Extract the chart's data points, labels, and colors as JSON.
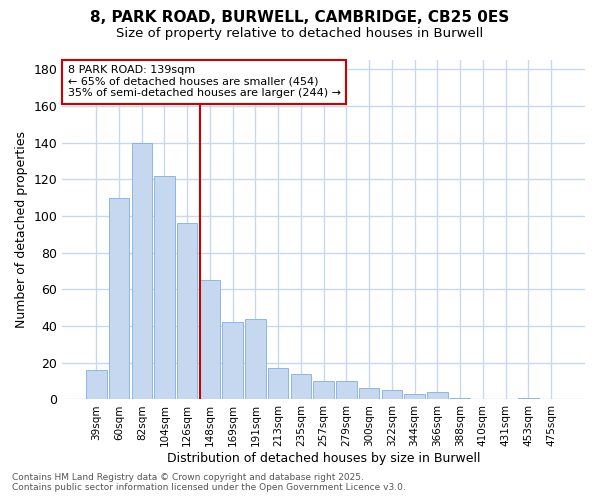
{
  "title1": "8, PARK ROAD, BURWELL, CAMBRIDGE, CB25 0ES",
  "title2": "Size of property relative to detached houses in Burwell",
  "xlabel": "Distribution of detached houses by size in Burwell",
  "ylabel": "Number of detached properties",
  "categories": [
    "39sqm",
    "60sqm",
    "82sqm",
    "104sqm",
    "126sqm",
    "148sqm",
    "169sqm",
    "191sqm",
    "213sqm",
    "235sqm",
    "257sqm",
    "279sqm",
    "300sqm",
    "322sqm",
    "344sqm",
    "366sqm",
    "388sqm",
    "410sqm",
    "431sqm",
    "453sqm",
    "475sqm"
  ],
  "values": [
    16,
    110,
    140,
    122,
    96,
    65,
    42,
    44,
    17,
    14,
    10,
    10,
    6,
    5,
    3,
    4,
    1,
    0,
    0,
    1,
    0
  ],
  "bar_color": "#c5d8f0",
  "bar_edge_color": "#7fb0e0",
  "vline_x_index": 5,
  "vline_color": "#cc0000",
  "annotation_title": "8 PARK ROAD: 139sqm",
  "annotation_line1": "← 65% of detached houses are smaller (454)",
  "annotation_line2": "35% of semi-detached houses are larger (244) →",
  "annotation_box_color": "#cc0000",
  "ylim": [
    0,
    185
  ],
  "yticks": [
    0,
    20,
    40,
    60,
    80,
    100,
    120,
    140,
    160,
    180
  ],
  "footer1": "Contains HM Land Registry data © Crown copyright and database right 2025.",
  "footer2": "Contains public sector information licensed under the Open Government Licence v3.0.",
  "bg_color": "#ffffff",
  "plot_bg_color": "#ffffff",
  "grid_color": "#c8d8ee",
  "title_fontsize": 11,
  "subtitle_fontsize": 9.5
}
